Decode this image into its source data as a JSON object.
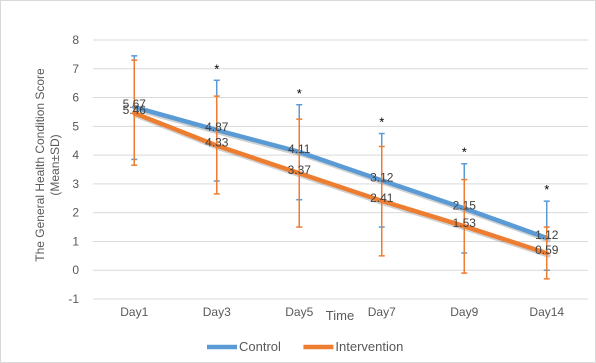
{
  "chart_data": {
    "type": "line",
    "categories": [
      "Day1",
      "Day3",
      "Day5",
      "Day7",
      "Day9",
      "Day14"
    ],
    "series": [
      {
        "name": "Control",
        "color": "#5b9bd5",
        "values": [
          5.67,
          4.87,
          4.11,
          3.12,
          2.15,
          1.12
        ],
        "error_low": [
          3.85,
          3.1,
          2.45,
          1.5,
          0.6,
          0.0
        ],
        "error_high": [
          7.45,
          6.6,
          5.75,
          4.75,
          3.7,
          2.4
        ],
        "labels": [
          "5.67",
          "4.87",
          "4.11",
          "3.12",
          "2.15",
          "1.12"
        ]
      },
      {
        "name": "Intervention",
        "color": "#ed7d31",
        "values": [
          5.46,
          4.33,
          3.37,
          2.41,
          1.53,
          0.59
        ],
        "error_low": [
          3.65,
          2.65,
          1.5,
          0.5,
          -0.1,
          -0.3
        ],
        "error_high": [
          7.3,
          6.05,
          5.25,
          4.3,
          3.15,
          1.5
        ],
        "labels": [
          "5.46",
          "4.33",
          "3.37",
          "2.41",
          "1.53",
          "0.59"
        ]
      }
    ],
    "significance_markers": [
      "",
      "*",
      "*",
      "*",
      "*",
      "*"
    ],
    "xlabel": "Time",
    "ylabel": "The  General Health Condition Score (Mean±SD)",
    "ylabel_lines": [
      "The  General Health Condition Score",
      "(Mean±SD)"
    ],
    "ylim": [
      -1,
      8
    ],
    "yticks": [
      -1,
      0,
      1,
      2,
      3,
      4,
      5,
      6,
      7,
      8
    ],
    "grid": true,
    "legend_position": "bottom"
  }
}
